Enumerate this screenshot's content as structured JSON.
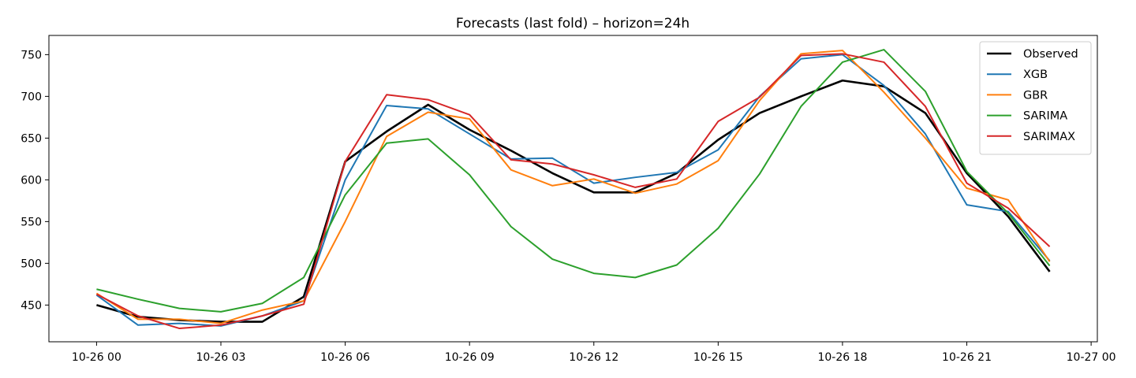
{
  "chart_data": {
    "type": "line",
    "title": "Forecasts (last fold) – horizon=24h",
    "xlabel": "",
    "ylabel": "",
    "x": [
      "10-26 00",
      "10-26 01",
      "10-26 02",
      "10-26 03",
      "10-26 04",
      "10-26 05",
      "10-26 06",
      "10-26 07",
      "10-26 08",
      "10-26 09",
      "10-26 10",
      "10-26 11",
      "10-26 12",
      "10-26 13",
      "10-26 14",
      "10-26 15",
      "10-26 16",
      "10-26 17",
      "10-26 18",
      "10-26 19",
      "10-26 20",
      "10-26 21",
      "10-26 22",
      "10-26 23"
    ],
    "x_ticks": [
      "10-26 00",
      "10-26 03",
      "10-26 06",
      "10-26 09",
      "10-26 12",
      "10-26 15",
      "10-26 18",
      "10-26 21",
      "10-27 00"
    ],
    "x_ticks_hours": [
      0,
      3,
      6,
      9,
      12,
      15,
      18,
      21,
      24
    ],
    "xlim_hours": [
      -1.15,
      24.15
    ],
    "y_ticks": [
      450,
      500,
      550,
      600,
      650,
      700,
      750
    ],
    "ylim": [
      406,
      773
    ],
    "grid": false,
    "legend_position": "top-right",
    "series": [
      {
        "name": "Observed",
        "color": "#000000",
        "values": [
          450,
          436,
          432,
          430,
          430,
          460,
          622,
          658,
          690,
          660,
          635,
          608,
          585,
          585,
          608,
          648,
          680,
          700,
          719,
          712,
          680,
          608,
          556,
          490
        ]
      },
      {
        "name": "XGB",
        "color": "#1f77b4",
        "values": [
          462,
          426,
          428,
          425,
          437,
          455,
          600,
          689,
          685,
          655,
          625,
          626,
          596,
          603,
          609,
          636,
          700,
          745,
          750,
          713,
          655,
          570,
          562,
          503
        ]
      },
      {
        "name": "GBR",
        "color": "#ff7f0e",
        "values": [
          464,
          433,
          433,
          428,
          444,
          455,
          550,
          652,
          681,
          673,
          612,
          593,
          601,
          584,
          595,
          623,
          695,
          751,
          755,
          705,
          650,
          590,
          576,
          502
        ]
      },
      {
        "name": "SARIMA",
        "color": "#2ca02c",
        "values": [
          469,
          457,
          446,
          442,
          452,
          483,
          582,
          644,
          649,
          606,
          544,
          505,
          488,
          483,
          498,
          542,
          607,
          688,
          741,
          756,
          706,
          610,
          560,
          497
        ]
      },
      {
        "name": "SARIMAX",
        "color": "#d62728",
        "values": [
          463,
          437,
          422,
          426,
          437,
          451,
          622,
          702,
          696,
          678,
          624,
          619,
          606,
          591,
          601,
          670,
          699,
          749,
          751,
          741,
          688,
          596,
          566,
          520
        ]
      }
    ]
  }
}
